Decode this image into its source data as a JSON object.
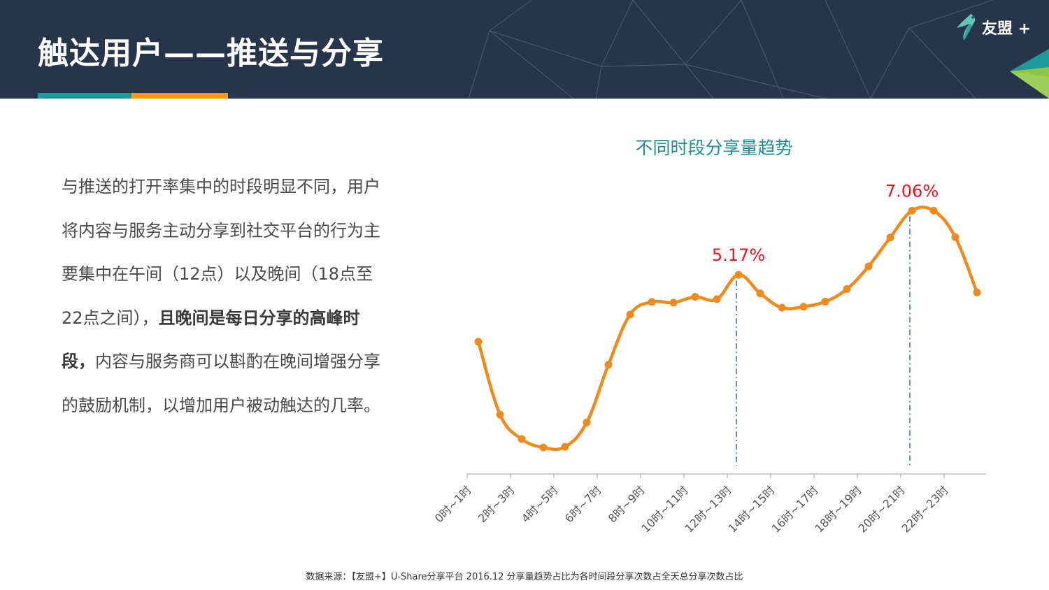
{
  "header": {
    "title": "触达用户——推送与分享",
    "logo_text": "友盟 +",
    "colors": {
      "background": "#26354a",
      "accent_teal": "#1f9a9c",
      "accent_orange": "#f29b18"
    }
  },
  "body": {
    "paragraph_lead": "与推送的打开率集中的时段明显不同，用户将内容与服务主动分享到社交平台的行为主要集中在午间（12点）以及晚间（18点至22点之间），",
    "paragraph_bold": "且晚间是每日分享的高峰时段，",
    "paragraph_tail": "内容与服务商可以斟酌在晚间增强分享的鼓励机制，以增加用户被动触达的几率。"
  },
  "chart_data": {
    "type": "line",
    "title": "不同时段分享量趋势",
    "categories": [
      "0时~1时",
      "2时~3时",
      "4时~5时",
      "6时~7时",
      "8时~9时",
      "10时~11时",
      "12时~13时",
      "14时~15时",
      "16时~17时",
      "18时~19时",
      "20时~21时",
      "22时~23时"
    ],
    "x": [
      0,
      1,
      2,
      3,
      4,
      5,
      6,
      7,
      8,
      9,
      10,
      11,
      12,
      13,
      14,
      15,
      16,
      17,
      18,
      19,
      20,
      21,
      22,
      23
    ],
    "series": [
      {
        "values": [
          3.2,
          1.05,
          0.33,
          0.08,
          0.1,
          0.82,
          2.52,
          4.0,
          4.37,
          4.35,
          4.52,
          4.45,
          5.17,
          4.62,
          4.2,
          4.23,
          4.38,
          4.75,
          5.42,
          6.27,
          7.06,
          7.06,
          6.28,
          4.65
        ]
      }
    ],
    "ylim": [
      -0.7,
      7.5
    ],
    "annotations": [
      {
        "x": 12,
        "label": "5.17%"
      },
      {
        "x": 20,
        "label": "7.06%"
      }
    ],
    "grid": false,
    "line_color": "#ee8b1c",
    "annotation_color": "#e8141e",
    "guide_color": "#3a6f8f"
  },
  "source": "数据来源：【友盟+】U-Share分享平台 2016.12 分享量趋势占比为各时间段分享次数占全天总分享次数占比"
}
